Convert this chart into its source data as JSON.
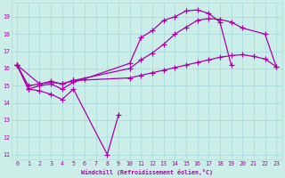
{
  "xlabel": "Windchill (Refroidissement éolien,°C)",
  "xlim": [
    -0.5,
    23.5
  ],
  "ylim": [
    10.7,
    19.8
  ],
  "yticks": [
    11,
    12,
    13,
    14,
    15,
    16,
    17,
    18,
    19
  ],
  "xticks": [
    0,
    1,
    2,
    3,
    4,
    5,
    6,
    7,
    8,
    9,
    10,
    11,
    12,
    13,
    14,
    15,
    16,
    17,
    18,
    19,
    20,
    21,
    22,
    23
  ],
  "bg_color": "#cceee8",
  "grid_color": "#aadddd",
  "line_color": "#aa00aa",
  "line_width": 0.9,
  "marker": "+",
  "marker_size": 4,
  "marker_lw": 0.9,
  "lines": [
    {
      "x": [
        0,
        1,
        2,
        3,
        4,
        5,
        8,
        9
      ],
      "y": [
        16.2,
        14.8,
        14.7,
        14.5,
        14.2,
        14.8,
        11.0,
        13.3
      ]
    },
    {
      "x": [
        0,
        1,
        2,
        3,
        4,
        5,
        6,
        10,
        11,
        12,
        13,
        14,
        15,
        16,
        17,
        18,
        19
      ],
      "y": [
        16.2,
        14.8,
        15.0,
        15.1,
        14.8,
        15.2,
        15.4,
        16.3,
        17.8,
        18.2,
        18.8,
        19.0,
        19.35,
        19.4,
        19.2,
        18.7,
        16.2
      ]
    },
    {
      "x": [
        0,
        2,
        3,
        4,
        5,
        10,
        11,
        12,
        13,
        14,
        15,
        16,
        17,
        18,
        19,
        20,
        22,
        23
      ],
      "y": [
        16.2,
        15.1,
        15.25,
        15.1,
        15.3,
        16.0,
        16.5,
        16.9,
        17.4,
        18.0,
        18.4,
        18.8,
        18.9,
        18.85,
        18.7,
        18.35,
        18.0,
        16.1
      ]
    },
    {
      "x": [
        0,
        1,
        2,
        3,
        4,
        5,
        10,
        11,
        12,
        13,
        14,
        15,
        16,
        17,
        18,
        19,
        20,
        21,
        22,
        23
      ],
      "y": [
        16.2,
        15.0,
        15.1,
        15.2,
        15.1,
        15.3,
        15.45,
        15.6,
        15.75,
        15.9,
        16.05,
        16.2,
        16.35,
        16.5,
        16.65,
        16.75,
        16.8,
        16.7,
        16.55,
        16.1
      ]
    }
  ]
}
